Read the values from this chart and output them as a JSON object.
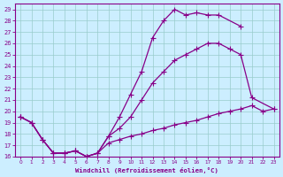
{
  "bg_color": "#cceeff",
  "line_color": "#880088",
  "grid_color": "#99cccc",
  "xlabel": "Windchill (Refroidissement éolien,°C)",
  "xlim": [
    -0.5,
    23.5
  ],
  "ylim": [
    16,
    29.5
  ],
  "yticks": [
    16,
    17,
    18,
    19,
    20,
    21,
    22,
    23,
    24,
    25,
    26,
    27,
    28,
    29
  ],
  "xticks": [
    0,
    1,
    2,
    3,
    4,
    5,
    6,
    7,
    8,
    9,
    10,
    11,
    12,
    13,
    14,
    15,
    16,
    17,
    18,
    19,
    20,
    21,
    22,
    23
  ],
  "line1_x": [
    0,
    1,
    2,
    3,
    4,
    5,
    6,
    7,
    8,
    9,
    10,
    11,
    12,
    13,
    14,
    15,
    16,
    17,
    18,
    20
  ],
  "line1_y": [
    19.5,
    19.0,
    17.5,
    16.3,
    16.3,
    16.5,
    16.0,
    16.3,
    17.8,
    19.5,
    21.5,
    23.5,
    26.5,
    28.0,
    29.0,
    28.5,
    28.7,
    28.5,
    28.5,
    27.5
  ],
  "line2_x": [
    0,
    1,
    2,
    3,
    4,
    5,
    6,
    7,
    8,
    9,
    10,
    11,
    12,
    13,
    14,
    15,
    16,
    17,
    18,
    19,
    20,
    21,
    23
  ],
  "line2_y": [
    19.5,
    19.0,
    17.5,
    16.3,
    16.3,
    16.5,
    16.0,
    16.3,
    17.8,
    18.5,
    19.5,
    21.0,
    22.5,
    23.5,
    24.5,
    25.0,
    25.5,
    26.0,
    26.0,
    25.5,
    25.0,
    21.2,
    20.2
  ],
  "line3_x": [
    0,
    1,
    2,
    3,
    4,
    5,
    6,
    7,
    8,
    9,
    10,
    11,
    12,
    13,
    14,
    15,
    16,
    17,
    18,
    19,
    20,
    21,
    22,
    23
  ],
  "line3_y": [
    19.5,
    19.0,
    17.5,
    16.3,
    16.3,
    16.5,
    16.0,
    16.3,
    17.2,
    17.5,
    17.8,
    18.0,
    18.3,
    18.5,
    18.8,
    19.0,
    19.2,
    19.5,
    19.8,
    20.0,
    20.2,
    20.5,
    20.0,
    20.2
  ]
}
